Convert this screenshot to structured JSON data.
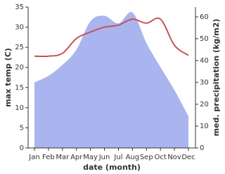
{
  "chart_data": {
    "type": "line-area",
    "x_label": "date (month)",
    "y_label": "max temp (C)",
    "y2_label": "med. precipitation (kg/m2)",
    "categories": [
      "Jan",
      "Feb",
      "Mar",
      "Apr",
      "May",
      "Jun",
      "Jul",
      "Aug",
      "Sep",
      "Oct",
      "Nov",
      "Dec"
    ],
    "series": [
      {
        "name": "max temp",
        "type": "line",
        "color": "#c8505a",
        "values": [
          22.8,
          22.8,
          23.5,
          27.2,
          28.8,
          30.0,
          30.5,
          32.0,
          31.0,
          32.0,
          25.5,
          23.0
        ]
      },
      {
        "name": "med. precipitation",
        "type": "area",
        "axis": "y2",
        "color": "#aab5ef",
        "values": [
          30,
          33,
          38,
          45,
          58,
          60.5,
          57,
          62,
          48,
          37,
          26.5,
          14.5
        ]
      }
    ],
    "ylim": [
      0,
      35
    ],
    "yticks": [
      0,
      5,
      10,
      15,
      20,
      25,
      30,
      35
    ],
    "y2lim": [
      0,
      64.5
    ],
    "y2ticks": [
      0,
      10,
      20,
      30,
      40,
      50,
      60
    ]
  }
}
